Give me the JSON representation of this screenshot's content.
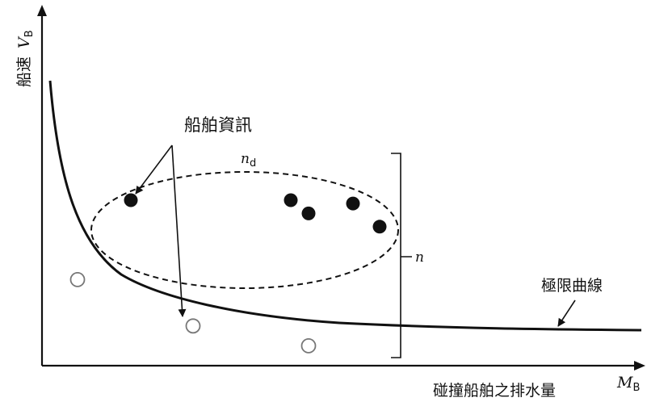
{
  "labels": {
    "y_axis_cjk": "船速",
    "y_axis_symbol": "V",
    "y_axis_subscript": "B",
    "x_axis_cjk": "碰撞船舶之排水量",
    "x_axis_symbol": "M",
    "x_axis_subscript": "B",
    "ship_info": "船舶資訊",
    "ellipse_symbol": "n",
    "ellipse_subscript": "d",
    "bracket_symbol": "n",
    "limit_curve": "極限曲線"
  },
  "points": {
    "filled": [
      {
        "x": 1.0,
        "y": 5.0
      },
      {
        "x": 2.8,
        "y": 5.0
      },
      {
        "x": 3.0,
        "y": 4.6
      },
      {
        "x": 3.5,
        "y": 4.9
      },
      {
        "x": 3.8,
        "y": 4.2
      }
    ],
    "hollow": [
      {
        "x": 0.4,
        "y": 2.6
      },
      {
        "x": 1.7,
        "y": 1.2
      },
      {
        "x": 3.0,
        "y": 0.6
      }
    ]
  },
  "colors": {
    "ink": "#111111",
    "hollow_stroke": "#777777"
  }
}
